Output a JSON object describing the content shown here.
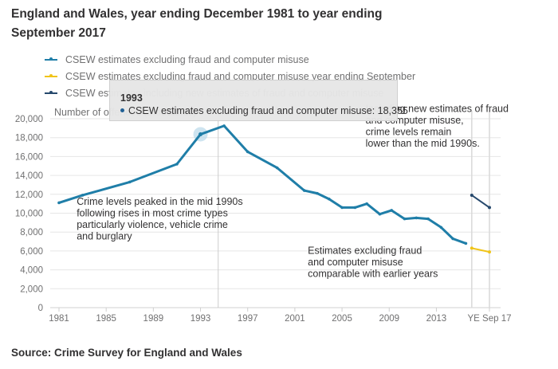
{
  "title": "England and Wales, year ending December 1981 to year ending September 2017",
  "source": "Source: Crime Survey for England and Wales",
  "tooltip": {
    "year": "1993",
    "series": "CSEW estimates excluding fraud and computer misuse",
    "value": "18,355",
    "color": "#206095"
  },
  "colors": {
    "main": "#1f7ea8",
    "ye_sep_excl": "#f0c419",
    "ye_sep_incl": "#27496d",
    "grid": "#e6e6e6",
    "hover_halo": "#b9d9ea"
  },
  "chart_data": {
    "type": "line",
    "title": "England and Wales, year ending December 1981 to year ending September 2017",
    "ylabel": "Number of offences (thousands)",
    "xlabel": "",
    "ylim": [
      0,
      20000
    ],
    "yticks": [
      0,
      2000,
      4000,
      6000,
      8000,
      10000,
      12000,
      14000,
      16000,
      18000,
      20000
    ],
    "ytick_labels": [
      "0",
      "2,000",
      "4,000",
      "6,000",
      "8,000",
      "10,000",
      "12,000",
      "14,000",
      "16,000",
      "18,000",
      "20,000"
    ],
    "xlim": [
      1981,
      2017.5
    ],
    "xticks": [
      1981,
      1985,
      1989,
      1993,
      1997,
      2001,
      2005,
      2009,
      2013,
      2017.5
    ],
    "xtick_labels": [
      "1981",
      "1985",
      "1989",
      "1993",
      "1997",
      "2001",
      "2005",
      "2009",
      "2013",
      "YE Sep 17"
    ],
    "grid": true,
    "legend_position": "top-left",
    "hover_x": 1993,
    "crosshair_x": 1994.5,
    "vlines_x": [
      2016.0,
      2017.5
    ],
    "series": [
      {
        "name": "CSEW estimates excluding fraud and computer misuse",
        "color": "#1f7ea8",
        "x": [
          1981,
          1983,
          1987,
          1991,
          1993,
          1995,
          1997,
          1999.5,
          2001.8,
          2002.9,
          2003.9,
          2005.0,
          2006.1,
          2007.1,
          2008.2,
          2009.2,
          2010.3,
          2011.3,
          2012.3,
          2013.4,
          2014.4,
          2015.5
        ],
        "values": [
          11100,
          11900,
          13300,
          15200,
          18355,
          19250,
          16500,
          14800,
          12400,
          12100,
          11500,
          10600,
          10600,
          11000,
          9900,
          10300,
          9400,
          9500,
          9400,
          8500,
          7300,
          6800
        ]
      },
      {
        "name": "CSEW estimates excluding fraud and computer misuse year ending September",
        "color": "#f0c419",
        "x": [
          2016.0,
          2017.5
        ],
        "values": [
          6300,
          5900
        ]
      },
      {
        "name": "CSEW estimates including new estimates of fraud and computer misuse",
        "color": "#27496d",
        "x": [
          2016.0,
          2017.5
        ],
        "values": [
          11900,
          10600
        ]
      }
    ],
    "legend": [
      "CSEW estimates excluding fraud and computer misuse",
      "CSEW estimates excluding fraud and computer misuse year ending September",
      "CSEW estimates including new estimates of fraud and computer misuse"
    ],
    "annotations": [
      {
        "lines": [
          "Crime levels peaked in the mid 1990s",
          "following rises in most crime types",
          "particularly violence, vehicle crime",
          "and burglary"
        ],
        "anchor_x": 1982.5,
        "anchor_y": 10900
      },
      {
        "lines": [
          "Estimates excluding fraud",
          "and computer misuse",
          "comparable with earlier years"
        ],
        "anchor_x": 2002.1,
        "anchor_y": 5700
      },
      {
        "lines": [
          "Including new estimates of fraud",
          "and computer misuse,",
          "crime levels remain",
          "lower than the mid 1990s."
        ],
        "anchor_x": 2007.0,
        "anchor_y": 20700
      }
    ]
  }
}
